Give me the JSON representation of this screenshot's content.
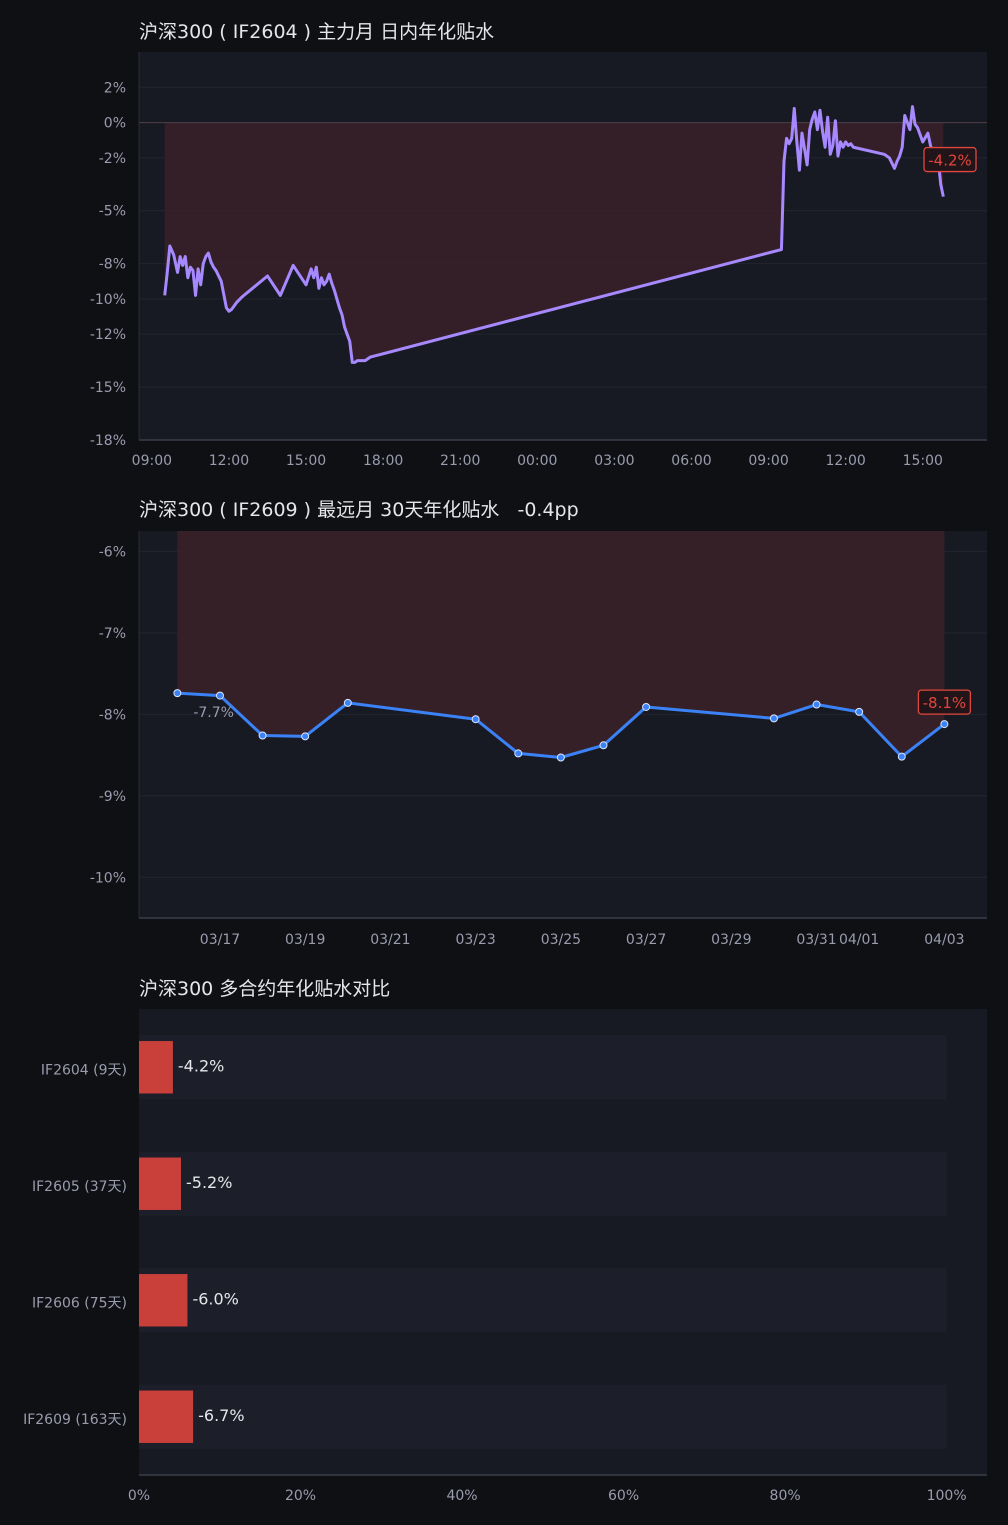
{
  "colors": {
    "background": "#0f1014",
    "plot_bg": "#181a23",
    "text": "#e6e6ea",
    "tick_text": "#9a9cae",
    "grid": "#22252f",
    "line_intraday": "#a789ff",
    "line_far": "#3b82f6",
    "discount_fill": "#3a2129",
    "negative_bar": "#c9403a",
    "badge_red": "#e1463c"
  },
  "chart_data": [
    {
      "id": "intraday",
      "type": "line",
      "title": "沪深300 ( IF2604 ) 主力月 日内年化贴水",
      "ylim": [
        -18,
        4
      ],
      "y_ticks": [
        2,
        0,
        -2,
        -5,
        -8,
        -10,
        -12,
        -15,
        -18
      ],
      "y_tick_labels": [
        "2%",
        "0%",
        "-2%",
        "-5%",
        "-8%",
        "-10%",
        "-12%",
        "-15%",
        "-18%"
      ],
      "x_tick_labels": [
        "09:00",
        "12:00",
        "15:00",
        "18:00",
        "21:00",
        "00:00",
        "03:00",
        "06:00",
        "09:00",
        "12:00",
        "15:00"
      ],
      "xlim": [
        -0.5,
        32.5
      ],
      "fill": "area to zero",
      "series": [
        {
          "x": [
            0.5,
            0.6,
            0.7,
            0.85,
            1.0,
            1.1,
            1.2,
            1.3,
            1.4,
            1.5,
            1.6,
            1.7,
            1.8,
            1.9,
            2.0,
            2.1,
            2.2,
            2.3,
            2.4,
            2.5,
            2.7,
            2.9,
            3.0,
            3.1,
            3.2,
            3.3,
            3.5,
            4.0,
            4.5,
            5.0,
            5.5,
            6.0,
            6.2,
            6.3,
            6.4,
            6.5,
            6.6,
            6.7,
            6.8,
            6.9,
            7.0,
            7.1,
            7.2,
            7.3,
            7.4,
            7.5,
            7.6,
            7.7,
            7.8,
            7.9,
            8.0,
            8.1,
            8.2,
            8.3,
            8.5,
            24.5,
            24.6,
            24.7,
            24.8,
            24.9,
            25.0,
            25.1,
            25.2,
            25.3,
            25.4,
            25.5,
            25.6,
            25.7,
            25.8,
            25.9,
            26.0,
            26.1,
            26.2,
            26.3,
            26.4,
            26.5,
            26.6,
            26.7,
            26.8,
            26.9,
            27.0,
            27.1,
            27.2,
            27.3,
            28.5,
            28.7,
            28.9,
            29.0,
            29.1,
            29.2,
            29.3,
            29.4,
            29.5,
            29.6,
            29.7,
            29.8,
            30.0,
            30.2,
            30.3,
            30.4,
            30.5,
            30.6,
            30.7,
            30.8
          ],
          "values": [
            -9.8,
            -8.5,
            -7.0,
            -7.5,
            -8.5,
            -7.6,
            -8.1,
            -7.6,
            -8.8,
            -8.2,
            -8.4,
            -9.8,
            -8.3,
            -9.2,
            -8.0,
            -7.6,
            -7.4,
            -7.9,
            -8.2,
            -8.4,
            -9.0,
            -10.5,
            -10.7,
            -10.6,
            -10.4,
            -10.2,
            -9.9,
            -9.3,
            -8.7,
            -9.8,
            -8.1,
            -9.2,
            -8.3,
            -8.8,
            -8.2,
            -9.4,
            -8.8,
            -9.2,
            -9.0,
            -8.6,
            -9.1,
            -9.5,
            -10.0,
            -10.5,
            -10.9,
            -11.6,
            -12.0,
            -12.4,
            -13.6,
            -13.6,
            -13.5,
            -13.5,
            -13.5,
            -13.5,
            -13.3,
            -7.2,
            -2.2,
            -0.9,
            -1.2,
            -0.9,
            0.8,
            -1.1,
            -2.7,
            -0.6,
            -1.5,
            -2.4,
            -0.4,
            0.2,
            0.6,
            -0.4,
            0.7,
            -0.5,
            -1.4,
            0.3,
            -1.8,
            -1.3,
            0.1,
            -1.9,
            -1.1,
            -1.4,
            -1.1,
            -1.3,
            -1.2,
            -1.4,
            -1.8,
            -2.0,
            -2.6,
            -2.2,
            -1.9,
            -1.4,
            0.4,
            0.0,
            -0.4,
            0.9,
            -0.1,
            -0.3,
            -1.1,
            -0.6,
            -1.3,
            -1.7,
            -1.5,
            -2.1,
            -3.5,
            -4.2
          ]
        }
      ],
      "last_value_label": "-4.2%"
    },
    {
      "id": "far-month",
      "type": "line",
      "title": "沪深300 ( IF2609 ) 最远月 30天年化贴水",
      "title_change": "-0.4pp",
      "ylim": [
        -10.5,
        -5.75
      ],
      "y_ticks": [
        -6,
        -7,
        -8,
        -9,
        -10
      ],
      "y_tick_labels": [
        "-6%",
        "-7%",
        "-8%",
        "-9%",
        "-10%"
      ],
      "x_tick_labels": [
        "03/17",
        "03/19",
        "03/21",
        "03/23",
        "03/25",
        "03/27",
        "03/29",
        "03/31",
        "04/01",
        "04/03"
      ],
      "x_tick_days": [
        17,
        19,
        21,
        23,
        25,
        27,
        29,
        31,
        32,
        34
      ],
      "xlim": [
        15.1,
        35.0
      ],
      "fill": "area to top",
      "series": [
        {
          "x": [
            16,
            17,
            18,
            19,
            20,
            23,
            24,
            25,
            26,
            27,
            30,
            31,
            32,
            33,
            34
          ],
          "values": [
            -7.74,
            -7.77,
            -8.26,
            -8.27,
            -7.86,
            -8.06,
            -8.48,
            -8.53,
            -8.38,
            -7.91,
            -8.05,
            -7.88,
            -7.97,
            -8.52,
            -8.12
          ]
        }
      ],
      "first_value_label": "-7.7%",
      "last_value_label": "-8.1%"
    },
    {
      "id": "contracts",
      "type": "bar",
      "orientation": "horizontal",
      "title": "沪深300 多合约年化贴水对比",
      "categories": [
        "IF2604 (9天)",
        "IF2605 (37天)",
        "IF2606 (75天)",
        "IF2609 (163天)"
      ],
      "values": [
        -4.2,
        -5.2,
        -6.0,
        -6.7
      ],
      "value_labels": [
        "-4.2%",
        "-5.2%",
        "-6.0%",
        "-6.7%"
      ],
      "xlim": [
        0,
        105
      ],
      "x_ticks": [
        0,
        20,
        40,
        60,
        80,
        100
      ],
      "x_tick_labels": [
        "0%",
        "20%",
        "40%",
        "60%",
        "80%",
        "100%"
      ],
      "bar_magnitude": "absolute value"
    }
  ]
}
